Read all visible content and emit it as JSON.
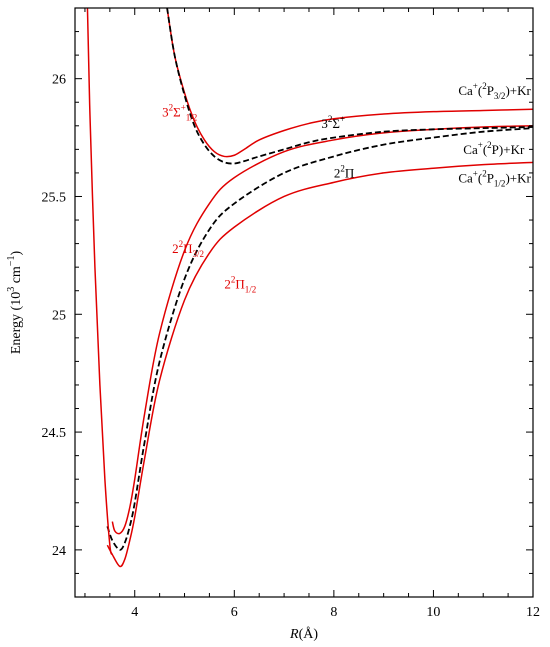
{
  "chart_data": {
    "type": "line",
    "xlabel": {
      "main": "R",
      "unit": "(Å)"
    },
    "ylabel": {
      "main": "Energy (10",
      "sup": "3",
      "mid": " cm",
      "sup2": "−1",
      "end": ")"
    },
    "xlim": [
      2.8,
      12
    ],
    "ylim": [
      23.8,
      26.3
    ],
    "xticks": [
      4,
      6,
      8,
      10,
      12
    ],
    "yticks": [
      24,
      24.5,
      25,
      25.5,
      26
    ],
    "xtick_labels": [
      "4",
      "6",
      "8",
      "10",
      "12"
    ],
    "ytick_labels": [
      "24",
      "24.5",
      "25",
      "25.5",
      "26"
    ],
    "colors": {
      "red": "#e00000",
      "black": "#000000"
    },
    "series": [
      {
        "style": "solid",
        "color": "#e00000",
        "x": [
          3.55,
          3.6,
          3.7,
          3.8,
          3.9,
          4.0,
          4.2,
          4.5,
          5.0,
          5.5,
          6.0,
          7.0,
          8.0,
          9.0,
          10.0,
          11.0,
          12.0
        ],
        "y": [
          24.12,
          24.08,
          24.07,
          24.1,
          24.18,
          24.3,
          24.58,
          24.92,
          25.27,
          25.47,
          25.58,
          25.69,
          25.74,
          25.77,
          25.785,
          25.795,
          25.8
        ]
      },
      {
        "style": "solid",
        "color": "#e00000",
        "x": [
          3.45,
          3.55,
          3.7,
          3.8,
          3.9,
          4.0,
          4.2,
          4.5,
          5.0,
          5.5,
          6.0,
          7.0,
          8.0,
          9.0,
          10.0,
          11.0,
          12.0
        ],
        "y": [
          24.02,
          23.98,
          23.93,
          23.96,
          24.04,
          24.14,
          24.39,
          24.72,
          25.06,
          25.26,
          25.37,
          25.5,
          25.56,
          25.6,
          25.62,
          25.635,
          25.645
        ]
      },
      {
        "style": "solid",
        "color": "#e00000",
        "x": [
          4.65,
          4.8,
          5.0,
          5.2,
          5.4,
          5.6,
          5.8,
          6.0,
          6.2,
          6.5,
          7.0,
          7.5,
          8.0,
          9.0,
          10.0,
          11.0,
          12.0
        ],
        "y": [
          26.3,
          26.1,
          25.94,
          25.82,
          25.74,
          25.69,
          25.67,
          25.675,
          25.7,
          25.74,
          25.78,
          25.81,
          25.83,
          25.85,
          25.86,
          25.865,
          25.87
        ]
      },
      {
        "style": "dashed",
        "color": "#000000",
        "x": [
          3.45,
          3.55,
          3.7,
          3.8,
          3.9,
          4.0,
          4.2,
          4.5,
          5.0,
          5.5,
          6.0,
          7.0,
          8.0,
          9.0,
          10.0,
          11.0,
          12.0
        ],
        "y": [
          24.1,
          24.04,
          24.0,
          24.03,
          24.1,
          24.2,
          24.46,
          24.8,
          25.15,
          25.36,
          25.47,
          25.6,
          25.67,
          25.72,
          25.75,
          25.775,
          25.79
        ]
      },
      {
        "style": "dashed",
        "color": "#000000",
        "x": [
          4.65,
          4.8,
          5.0,
          5.2,
          5.4,
          5.6,
          5.8,
          6.0,
          6.2,
          6.5,
          7.0,
          7.5,
          8.0,
          9.0,
          10.0,
          11.0,
          12.0
        ],
        "y": [
          26.3,
          26.1,
          25.93,
          25.8,
          25.72,
          25.67,
          25.645,
          25.64,
          25.65,
          25.67,
          25.7,
          25.73,
          25.75,
          25.775,
          25.785,
          25.79,
          25.795
        ]
      },
      {
        "style": "solid",
        "color": "#e00000",
        "x": [
          3.05,
          3.1,
          3.2,
          3.3,
          3.4,
          3.5,
          3.55
        ],
        "y": [
          26.3,
          25.85,
          25.2,
          24.7,
          24.3,
          24.02,
          23.98
        ]
      }
    ],
    "annotations": [
      {
        "key": "sigma12",
        "color": "red",
        "x": 4.55,
        "y": 25.84,
        "parts": [
          {
            "t": "3"
          },
          {
            "t": "2",
            "s": "sup"
          },
          {
            "t": "Σ"
          },
          {
            "t": "+",
            "s": "sup"
          },
          {
            "t": "1/2",
            "s": "sub"
          }
        ]
      },
      {
        "key": "sigma",
        "color": "black",
        "x": 7.75,
        "y": 25.79,
        "parts": [
          {
            "t": "3"
          },
          {
            "t": "2",
            "s": "sup"
          },
          {
            "t": "Σ"
          },
          {
            "t": "+",
            "s": "sup"
          }
        ]
      },
      {
        "key": "pi",
        "color": "black",
        "x": 8.0,
        "y": 25.58,
        "parts": [
          {
            "t": "2"
          },
          {
            "t": "2",
            "s": "sup"
          },
          {
            "t": "Π"
          }
        ]
      },
      {
        "key": "pi32",
        "color": "red",
        "x": 4.75,
        "y": 25.26,
        "parts": [
          {
            "t": "2"
          },
          {
            "t": "2",
            "s": "sup"
          },
          {
            "t": "Π"
          },
          {
            "t": "3/2",
            "s": "sub"
          }
        ]
      },
      {
        "key": "pi12",
        "color": "red",
        "x": 5.8,
        "y": 25.11,
        "parts": [
          {
            "t": "2"
          },
          {
            "t": "2",
            "s": "sup"
          },
          {
            "t": "Π"
          },
          {
            "t": "1/2",
            "s": "sub"
          }
        ]
      },
      {
        "key": "asym32",
        "color": "black",
        "x": 10.5,
        "y": 25.93,
        "parts": [
          {
            "t": "Ca"
          },
          {
            "t": "+",
            "s": "sup"
          },
          {
            "t": "("
          },
          {
            "t": "2",
            "s": "sup"
          },
          {
            "t": "P"
          },
          {
            "t": "3/2",
            "s": "sub"
          },
          {
            "t": ")+Kr"
          }
        ]
      },
      {
        "key": "asymP",
        "color": "black",
        "x": 10.6,
        "y": 25.68,
        "parts": [
          {
            "t": "Ca"
          },
          {
            "t": "+",
            "s": "sup"
          },
          {
            "t": "("
          },
          {
            "t": "2",
            "s": "sup"
          },
          {
            "t": "P)+Kr"
          }
        ]
      },
      {
        "key": "asym12",
        "color": "black",
        "x": 10.5,
        "y": 25.56,
        "parts": [
          {
            "t": "Ca"
          },
          {
            "t": "+",
            "s": "sup"
          },
          {
            "t": "("
          },
          {
            "t": "2",
            "s": "sup"
          },
          {
            "t": "P"
          },
          {
            "t": "1/2",
            "s": "sub"
          },
          {
            "t": ")+Kr"
          }
        ]
      }
    ]
  }
}
